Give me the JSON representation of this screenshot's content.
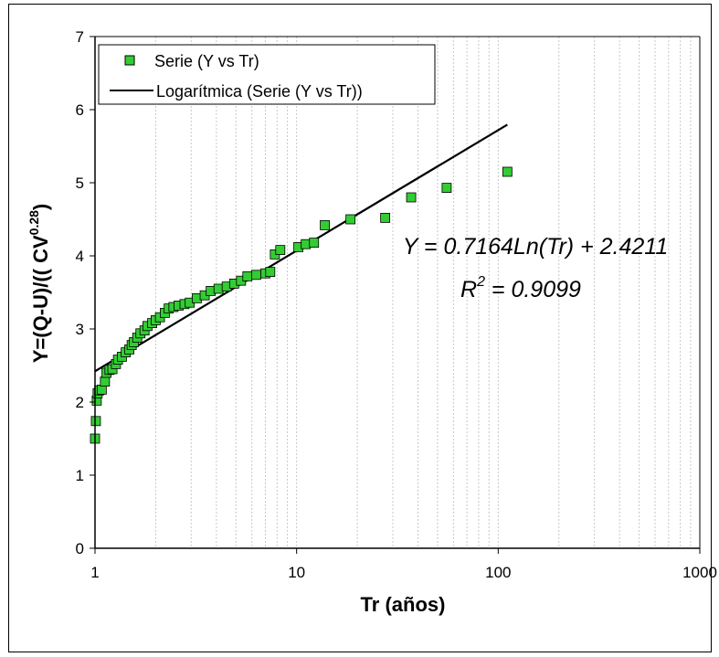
{
  "chart_data": {
    "type": "scatter",
    "x_scale": "log",
    "xlim": [
      1,
      1000
    ],
    "ylim": [
      0,
      7
    ],
    "x_ticks": [
      "1",
      "10",
      "100",
      "1000"
    ],
    "y_ticks": [
      "0",
      "1",
      "2",
      "3",
      "4",
      "5",
      "6",
      "7"
    ],
    "xlabel": "Tr (años)",
    "ylabel_base": "Y=(Q-U)/(( CV",
    "ylabel_sup": "0.28",
    "ylabel_end": ")",
    "grid": "vertical minor log gridlines",
    "legend_position": "top-left",
    "series": [
      {
        "name": "Serie (Y vs Tr)",
        "kind": "scatter",
        "color": "#33CC33",
        "edge_color": "#000000",
        "points": [
          [
            1.0,
            1.5
          ],
          [
            1.01,
            1.74
          ],
          [
            1.02,
            2.02
          ],
          [
            1.03,
            2.12
          ],
          [
            1.05,
            2.16
          ],
          [
            1.08,
            2.17
          ],
          [
            1.12,
            2.28
          ],
          [
            1.14,
            2.4
          ],
          [
            1.18,
            2.44
          ],
          [
            1.22,
            2.45
          ],
          [
            1.27,
            2.52
          ],
          [
            1.3,
            2.58
          ],
          [
            1.36,
            2.62
          ],
          [
            1.42,
            2.68
          ],
          [
            1.48,
            2.72
          ],
          [
            1.52,
            2.78
          ],
          [
            1.56,
            2.82
          ],
          [
            1.62,
            2.88
          ],
          [
            1.68,
            2.94
          ],
          [
            1.76,
            2.98
          ],
          [
            1.82,
            3.04
          ],
          [
            1.92,
            3.08
          ],
          [
            2.0,
            3.12
          ],
          [
            2.1,
            3.16
          ],
          [
            2.22,
            3.22
          ],
          [
            2.32,
            3.28
          ],
          [
            2.45,
            3.3
          ],
          [
            2.6,
            3.32
          ],
          [
            2.78,
            3.34
          ],
          [
            2.95,
            3.36
          ],
          [
            3.2,
            3.42
          ],
          [
            3.5,
            3.46
          ],
          [
            3.75,
            3.52
          ],
          [
            4.1,
            3.55
          ],
          [
            4.5,
            3.58
          ],
          [
            4.9,
            3.62
          ],
          [
            5.3,
            3.66
          ],
          [
            5.7,
            3.72
          ],
          [
            6.3,
            3.74
          ],
          [
            7.0,
            3.76
          ],
          [
            7.4,
            3.78
          ],
          [
            7.8,
            4.02
          ],
          [
            8.3,
            4.08
          ],
          [
            10.2,
            4.12
          ],
          [
            11.1,
            4.16
          ],
          [
            12.2,
            4.18
          ],
          [
            13.8,
            4.42
          ],
          [
            18.5,
            4.5
          ],
          [
            27.5,
            4.52
          ],
          [
            37.0,
            4.8
          ],
          [
            55.5,
            4.93
          ],
          [
            111.0,
            5.15
          ]
        ]
      },
      {
        "name": "Logarítmica (Serie (Y vs Tr))",
        "kind": "trendline",
        "color": "#000000",
        "model": {
          "a": 0.7164,
          "b": 2.4211
        },
        "x_range": [
          1.0,
          111.0
        ]
      }
    ],
    "annotations": {
      "equation": "Y = 0.7164Ln(Tr) + 2.4211",
      "r2_base": "R",
      "r2_sup": "2",
      "r2_value": " = 0.9099"
    }
  }
}
